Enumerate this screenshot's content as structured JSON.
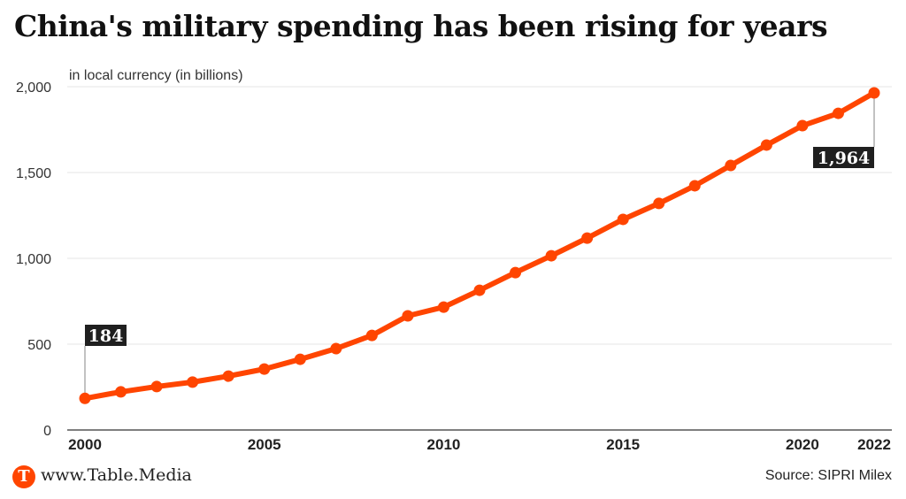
{
  "title": "China's military spending has been rising for years",
  "footer": {
    "logo_letter": "T",
    "site": "www.Table.Media",
    "source": "Source: SIPRI Milex"
  },
  "colors": {
    "line": "#ff4500",
    "annotation_bg": "#1f1f1f",
    "grid": "#e6e6e6",
    "axis": "#555555"
  },
  "chart_data": {
    "type": "line",
    "title": "China's military spending has been rising for years",
    "ylabel": "in local currency (in billions)",
    "xlabel": "",
    "x": [
      2000,
      2001,
      2002,
      2003,
      2004,
      2005,
      2006,
      2007,
      2008,
      2009,
      2010,
      2011,
      2012,
      2013,
      2014,
      2015,
      2016,
      2017,
      2018,
      2019,
      2020,
      2021,
      2022
    ],
    "series": [
      {
        "name": "Military spending",
        "values": [
          184,
          222,
          253,
          279,
          314,
          355,
          412,
          474,
          551,
          665,
          716,
          814,
          917,
          1015,
          1118,
          1227,
          1320,
          1423,
          1541,
          1660,
          1773,
          1845,
          1964
        ]
      }
    ],
    "ylim": [
      0,
      2000
    ],
    "xlim": [
      2000,
      2022
    ],
    "yticks": [
      0,
      500,
      1000,
      1500,
      2000
    ],
    "ytick_labels": [
      "0",
      "500",
      "1,000",
      "1,500",
      "2,000"
    ],
    "xticks": [
      2000,
      2005,
      2010,
      2015,
      2020,
      2022
    ],
    "xtick_labels": [
      "2000",
      "2005",
      "2010",
      "2015",
      "2020",
      "2022"
    ],
    "grid": true,
    "legend": "none",
    "annotations": [
      {
        "x": 2000,
        "value": 184,
        "label": "184",
        "position": "above"
      },
      {
        "x": 2022,
        "value": 1964,
        "label": "1,964",
        "position": "below"
      }
    ]
  }
}
